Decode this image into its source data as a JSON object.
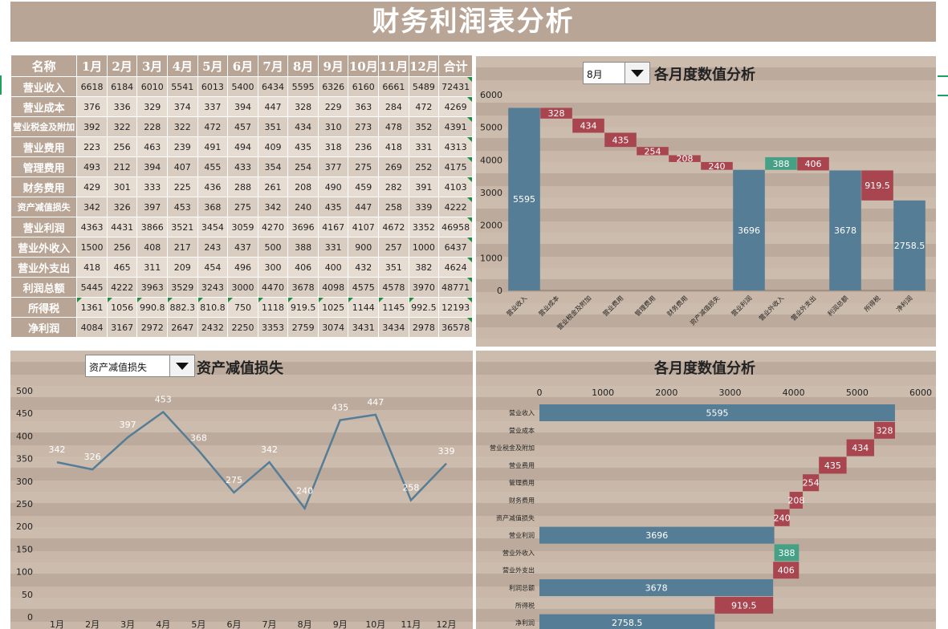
{
  "title": "财务利润表分析",
  "table": {
    "headers": [
      "名称",
      "1月",
      "2月",
      "3月",
      "4月",
      "5月",
      "6月",
      "7月",
      "8月",
      "9月",
      "10月",
      "11月",
      "12月",
      "合计"
    ],
    "rows": [
      {
        "name": "营业收入",
        "values": [
          "6618",
          "6184",
          "6010",
          "5541",
          "6013",
          "5400",
          "6434",
          "5595",
          "6326",
          "6160",
          "6661",
          "5489",
          "72431"
        ]
      },
      {
        "name": "营业成本",
        "values": [
          "376",
          "336",
          "329",
          "374",
          "337",
          "394",
          "447",
          "328",
          "229",
          "363",
          "284",
          "472",
          "4269"
        ]
      },
      {
        "name": "营业税金及附加",
        "values": [
          "392",
          "322",
          "228",
          "322",
          "472",
          "457",
          "351",
          "434",
          "310",
          "273",
          "478",
          "352",
          "4391"
        ]
      },
      {
        "name": "营业费用",
        "values": [
          "223",
          "256",
          "463",
          "239",
          "491",
          "494",
          "409",
          "435",
          "318",
          "236",
          "418",
          "331",
          "4313"
        ]
      },
      {
        "name": "管理费用",
        "values": [
          "493",
          "212",
          "394",
          "407",
          "455",
          "433",
          "354",
          "254",
          "377",
          "275",
          "269",
          "252",
          "4175"
        ]
      },
      {
        "name": "财务费用",
        "values": [
          "429",
          "301",
          "333",
          "225",
          "436",
          "288",
          "261",
          "208",
          "490",
          "459",
          "282",
          "391",
          "4103"
        ]
      },
      {
        "name": "资产减值损失",
        "values": [
          "342",
          "326",
          "397",
          "453",
          "368",
          "275",
          "342",
          "240",
          "435",
          "447",
          "258",
          "339",
          "4222"
        ]
      },
      {
        "name": "营业利润",
        "values": [
          "4363",
          "4431",
          "3866",
          "3521",
          "3454",
          "3059",
          "4270",
          "3696",
          "4167",
          "4107",
          "4672",
          "3352",
          "46958"
        ]
      },
      {
        "name": "营业外收入",
        "values": [
          "1500",
          "256",
          "408",
          "217",
          "243",
          "437",
          "500",
          "388",
          "331",
          "900",
          "257",
          "1000",
          "6437"
        ]
      },
      {
        "name": "营业外支出",
        "values": [
          "418",
          "465",
          "311",
          "209",
          "454",
          "496",
          "300",
          "406",
          "400",
          "432",
          "351",
          "382",
          "4624"
        ]
      },
      {
        "name": "利润总额",
        "values": [
          "5445",
          "4222",
          "3963",
          "3529",
          "3243",
          "3000",
          "4470",
          "3678",
          "4098",
          "4575",
          "4578",
          "3970",
          "48771"
        ]
      },
      {
        "name": "所得税",
        "values": [
          "1361",
          "1056",
          "990.8",
          "882.3",
          "810.8",
          "750",
          "1118",
          "919.5",
          "1025",
          "1144",
          "1145",
          "992.5",
          "12193"
        ]
      },
      {
        "name": "净利润",
        "values": [
          "4084",
          "3167",
          "2972",
          "2647",
          "2432",
          "2250",
          "3353",
          "2759",
          "3074",
          "3431",
          "3434",
          "2978",
          "36578"
        ]
      }
    ]
  },
  "waterfall_panel": {
    "title": "各月度数值分析",
    "dropdown_value": "8月"
  },
  "line_panel": {
    "title": "资产减值损失",
    "dropdown_value": "资产减值损失"
  },
  "hbar_panel": {
    "title": "各月度数值分析"
  },
  "colors": {
    "total": "#557d96",
    "decrease": "#a8454f",
    "increase": "#45a085",
    "header": "#b9a595"
  },
  "chart_data": [
    {
      "type": "bar",
      "subtype": "waterfall",
      "title": "各月度数值分析",
      "categories": [
        "营业收入",
        "营业成本",
        "营业税金及附加",
        "营业费用",
        "管理费用",
        "财务费用",
        "资产减值损失",
        "营业利润",
        "营业外收入",
        "营业外支出",
        "利润总额",
        "所得税",
        "净利润"
      ],
      "values": [
        5595,
        328,
        434,
        435,
        254,
        208,
        240,
        3696,
        388,
        406,
        3678,
        919.5,
        2758.5
      ],
      "labels": [
        "5595",
        "328",
        "434",
        "435",
        "254",
        "208",
        "240",
        "3696",
        "388",
        "406",
        "3678",
        "919.5",
        "2758.5"
      ],
      "kinds": [
        "total",
        "down",
        "down",
        "down",
        "down",
        "down",
        "down",
        "total",
        "up",
        "down",
        "total",
        "down",
        "total"
      ],
      "category_labels": [
        "营业收入",
        "营业成本",
        "营业税金及附加",
        "营业费用",
        "管理费用",
        "财务费用",
        "资产减值损失",
        "营业利润",
        "营业外收入",
        "营业外支出",
        "利润总额",
        "所得税",
        "净利润"
      ],
      "yticks": [
        "0",
        "1000",
        "2000",
        "3000",
        "4000",
        "5000",
        "6000"
      ],
      "ylim": [
        0,
        6000
      ]
    },
    {
      "type": "line",
      "title": "资产减值损失",
      "categories": [
        "1月",
        "2月",
        "3月",
        "4月",
        "5月",
        "6月",
        "7月",
        "8月",
        "9月",
        "10月",
        "11月",
        "12月"
      ],
      "values": [
        342,
        326,
        397,
        453,
        368,
        275,
        342,
        240,
        435,
        447,
        258,
        339
      ],
      "yticks": [
        "0",
        "50",
        "100",
        "150",
        "200",
        "250",
        "300",
        "350",
        "400",
        "450",
        "500"
      ],
      "ylim": [
        0,
        500
      ]
    },
    {
      "type": "bar",
      "subtype": "horizontal-waterfall",
      "title": "各月度数值分析",
      "categories": [
        "营业收入",
        "营业成本",
        "营业税金及附加",
        "营业费用",
        "管理费用",
        "财务费用",
        "资产减值损失",
        "营业利润",
        "营业外收入",
        "营业外支出",
        "利润总额",
        "所得税",
        "净利润"
      ],
      "values": [
        5595,
        328,
        434,
        435,
        254,
        208,
        240,
        3696,
        388,
        406,
        3678,
        919.5,
        2758.5
      ],
      "labels": [
        "5595",
        "328",
        "434",
        "435",
        "254",
        "208",
        "240",
        "3696",
        "388",
        "406",
        "3678",
        "919.5",
        "2758.5"
      ],
      "kinds": [
        "total",
        "down",
        "down",
        "down",
        "down",
        "down",
        "down",
        "total",
        "up",
        "down",
        "total",
        "down",
        "total"
      ],
      "xticks": [
        "0",
        "1000",
        "2000",
        "3000",
        "4000",
        "5000",
        "6000"
      ],
      "xlim": [
        0,
        6000
      ]
    }
  ]
}
